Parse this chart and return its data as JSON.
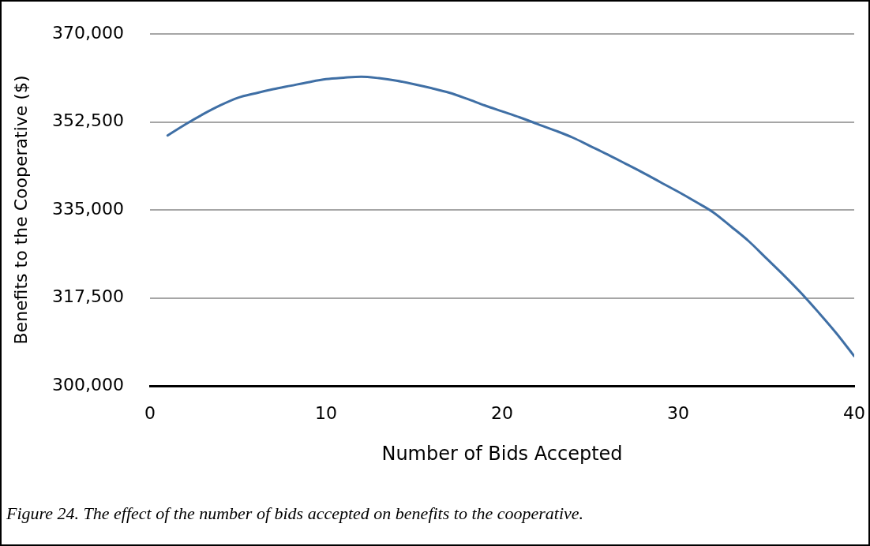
{
  "chart_data": {
    "type": "line",
    "xlabel": "Number of Bids Accepted",
    "ylabel": "Benefits to the Cooperative ($)",
    "annotations": [
      "Figure 24. The effect of the number of bids accepted on benefits to the cooperative."
    ],
    "x": [
      1,
      2,
      3,
      4,
      5,
      6,
      7,
      8,
      9,
      10,
      11,
      12,
      13,
      14,
      15,
      16,
      17,
      18,
      19,
      20,
      21,
      22,
      23,
      24,
      25,
      26,
      27,
      28,
      29,
      30,
      31,
      32,
      33,
      34,
      35,
      36,
      37,
      38,
      39,
      40
    ],
    "series": [
      {
        "color": "#3f6fa5",
        "values": [
          349800,
          352000,
          354000,
          355800,
          357300,
          358200,
          359000,
          359700,
          360400,
          361000,
          361300,
          361500,
          361200,
          360700,
          360000,
          359200,
          358300,
          357100,
          355800,
          354600,
          353400,
          352100,
          350800,
          349400,
          347700,
          346000,
          344200,
          342400,
          340500,
          338600,
          336600,
          334500,
          331700,
          328800,
          325400,
          322000,
          318400,
          314500,
          310400,
          305900
        ]
      }
    ],
    "xlim": [
      0,
      40
    ],
    "xticks": [
      0,
      10,
      20,
      30,
      40
    ],
    "ylim": [
      300000,
      370000
    ],
    "yticks": [
      {
        "value": 300000,
        "label": "300,000"
      },
      {
        "value": 317500,
        "label": "317,500"
      },
      {
        "value": 335000,
        "label": "335,000"
      },
      {
        "value": 352500,
        "label": "352,500"
      },
      {
        "value": 370000,
        "label": "370,000"
      }
    ],
    "grid": "y",
    "legend": false,
    "marker": "none",
    "line_style": "solid"
  }
}
